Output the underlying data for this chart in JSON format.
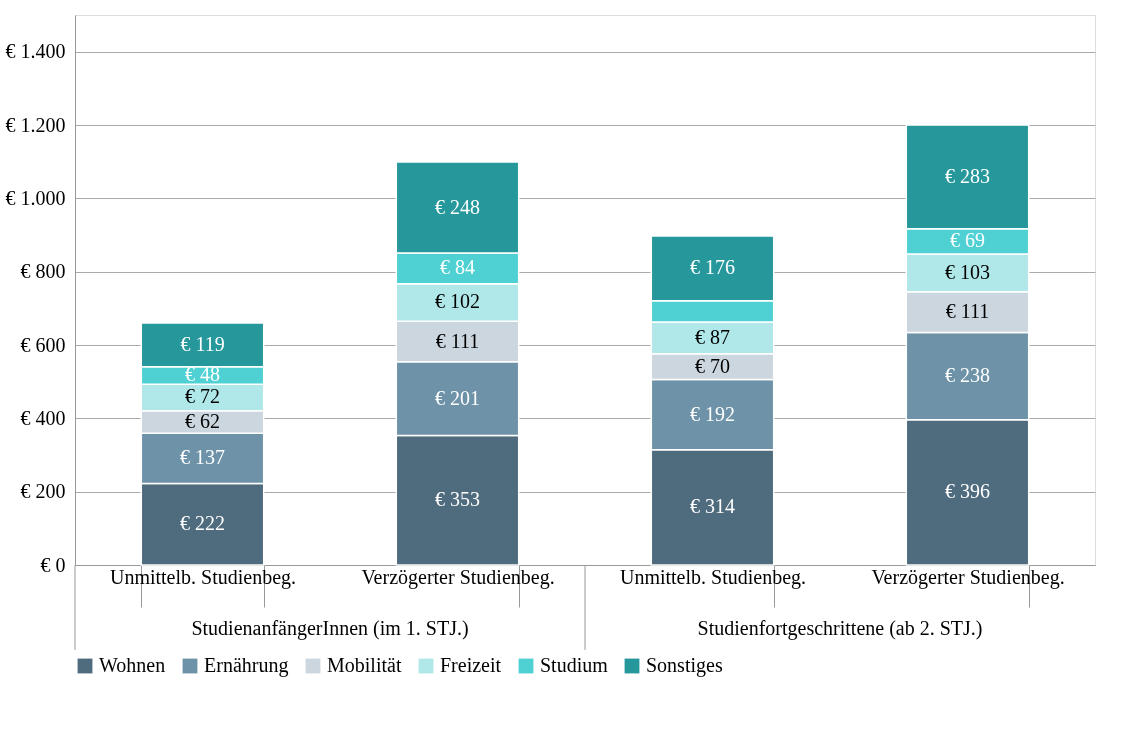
{
  "chart_data": {
    "type": "bar",
    "stacked": true,
    "categories": [
      "Unmittelb. Studienbeg.",
      "Verzögerter Studienbeg.",
      "Unmittelb. Studienbeg.",
      "Verzögerter Studienbeg."
    ],
    "annotations": [
      "StudienanfängerInnen (im 1. STJ.)",
      "Studienfortgeschrittene (ab 2. STJ.)"
    ],
    "series": [
      {
        "name": "Wohnen",
        "color": "#4f6b7e",
        "values": [
          222,
          353,
          314,
          396
        ],
        "value_labels": [
          "€ 222",
          "€ 353",
          "€ 314",
          "€ 396"
        ]
      },
      {
        "name": "Ernährung",
        "color": "#6e93a8",
        "values": [
          137,
          201,
          192,
          238
        ],
        "value_labels": [
          "€ 137",
          "€ 201",
          "€ 192",
          "€ 238"
        ]
      },
      {
        "name": "Mobilität",
        "color": "#cbd6de",
        "values": [
          62,
          111,
          70,
          111
        ],
        "value_labels": [
          "€ 62",
          "€ 111",
          "€ 70",
          "€ 111"
        ]
      },
      {
        "name": "Freizeit",
        "color": "#b0e8ea",
        "values": [
          72,
          102,
          87,
          103
        ],
        "value_labels": [
          "€ 72",
          "€ 102",
          "€ 87",
          "€ 103"
        ]
      },
      {
        "name": "Studium",
        "color": "#4fd0d3",
        "values": [
          48,
          84,
          58,
          69
        ],
        "value_labels": [
          "€ 48",
          "€ 84",
          null,
          "€ 69"
        ]
      },
      {
        "name": "Sonstiges",
        "color": "#26979a",
        "values": [
          119,
          248,
          176,
          283
        ],
        "value_labels": [
          "€ 119",
          "€ 248",
          "€ 176",
          "€ 283"
        ]
      }
    ],
    "ylim": [
      0,
      1500
    ],
    "yticks": [
      {
        "value": 0,
        "label": "€ 0"
      },
      {
        "value": 200,
        "label": "€ 200"
      },
      {
        "value": 400,
        "label": "€ 400"
      },
      {
        "value": 600,
        "label": "€ 600"
      },
      {
        "value": 800,
        "label": "€ 800"
      },
      {
        "value": 1000,
        "label": "€ 1.000"
      },
      {
        "value": 1200,
        "label": "€ 1.200"
      },
      {
        "value": 1400,
        "label": "€ 1.400"
      }
    ],
    "grid": "y",
    "legend": "bottom"
  }
}
